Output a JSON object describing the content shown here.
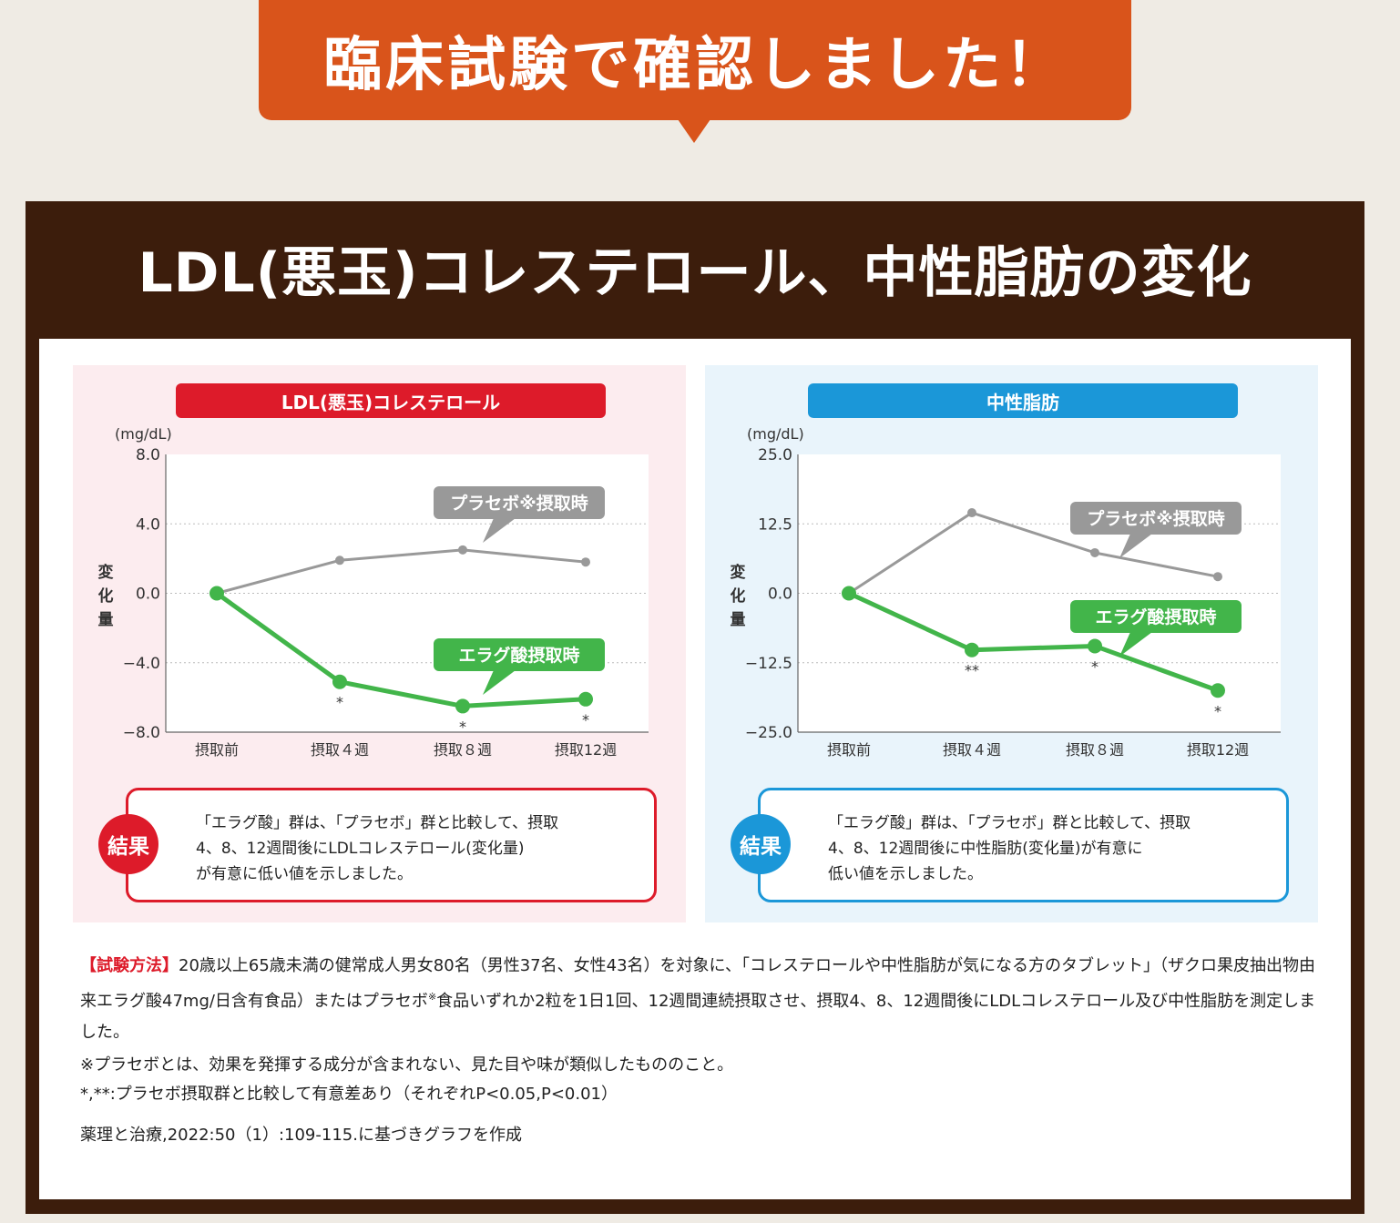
{
  "banner": {
    "text": "臨床試験で確認しました！"
  },
  "title": "LDL(悪玉)コレステロール、中性脂肪の変化",
  "colors": {
    "banner": "#d9541b",
    "frame": "#3c1d0c",
    "ldl_accent": "#dd1b2a",
    "tg_accent": "#1b97d8",
    "placebo_line": "#999999",
    "ellagic_line": "#42b54a"
  },
  "chart_data": [
    {
      "type": "line",
      "title": "LDL(悪玉)コレステロール",
      "unit": "(mg/dL)",
      "ylabel": "変化量",
      "categories": [
        "摂取前",
        "摂取４週",
        "摂取８週",
        "摂取12週"
      ],
      "ylim": [
        -8.0,
        8.0
      ],
      "yticks": [
        "8.0",
        "4.0",
        "0.0",
        "−4.0",
        "−8.0"
      ],
      "ytick_values": [
        8,
        4,
        0,
        -4,
        -8
      ],
      "series": [
        {
          "name": "プラセボ※摂取時",
          "values": [
            0.0,
            1.9,
            2.5,
            1.8
          ]
        },
        {
          "name": "エラグ酸摂取時",
          "values": [
            0.0,
            -5.1,
            -6.5,
            -6.1
          ]
        }
      ],
      "significance": [
        "",
        "*",
        "*",
        "*"
      ]
    },
    {
      "type": "line",
      "title": "中性脂肪",
      "unit": "(mg/dL)",
      "ylabel": "変化量",
      "categories": [
        "摂取前",
        "摂取４週",
        "摂取８週",
        "摂取12週"
      ],
      "ylim": [
        -25.0,
        25.0
      ],
      "yticks": [
        "25.0",
        "12.5",
        "0.0",
        "−12.5",
        "−25.0"
      ],
      "ytick_values": [
        25,
        12.5,
        0,
        -12.5,
        -25
      ],
      "series": [
        {
          "name": "プラセボ※摂取時",
          "values": [
            0.0,
            14.5,
            7.3,
            3.0
          ]
        },
        {
          "name": "エラグ酸摂取時",
          "values": [
            0.0,
            -10.2,
            -9.5,
            -17.5
          ]
        }
      ],
      "significance": [
        "",
        "**",
        "*",
        "*"
      ]
    }
  ],
  "results": {
    "badge": "結果",
    "ldl": "「エラグ酸」群は、「プラセボ」群と比較して、摂取\n4、8、12週間後にLDLコレステロール(変化量)\nが有意に低い値を示しました。",
    "tg": "「エラグ酸」群は、「プラセボ」群と比較して、摂取\n4、8、12週間後に中性脂肪(変化量)が有意に\n低い値を示しました。"
  },
  "method": {
    "label": "【試験方法】",
    "text1": "20歳以上65歳未満の健常成人男女80名（男性37名、女性43名）を対象に、「コレステロールや中性脂肪が気になる方のタブレット」（ザクロ果皮抽出物由来エラグ酸47mg/日含有食品）またはプラセボ",
    "sup": "※",
    "text2": "食品いずれか2粒を1日1回、12週間連続摂取させ、摂取4、8、12週間後にLDLコレステロール及び中性脂肪を測定しました。"
  },
  "notes": {
    "placebo": "※プラセボとは、効果を発揮する成分が含まれない、見た目や味が類似したもののこと。",
    "significance": "*,**:プラセボ摂取群と比較して有意差あり（それぞれP<0.05,P<0.01）"
  },
  "source": "薬理と治療,2022:50（1）:109-115.に基づきグラフを作成"
}
